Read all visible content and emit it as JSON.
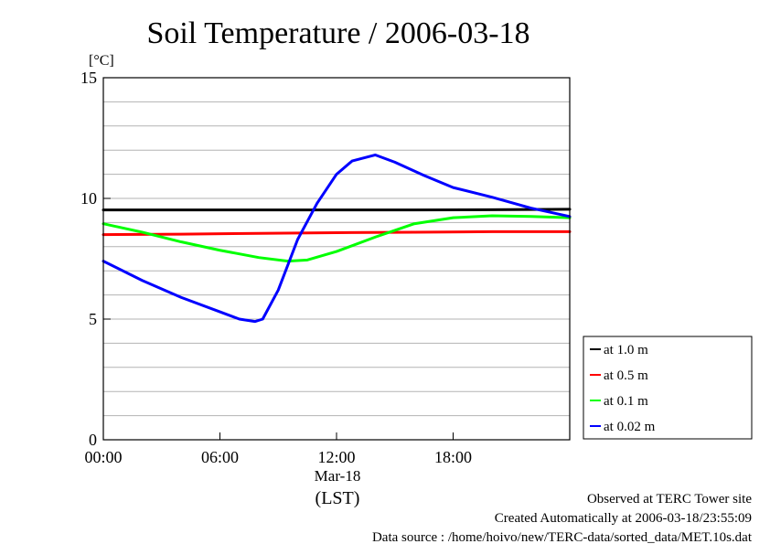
{
  "chart_data": {
    "type": "line",
    "title": "Soil Temperature / 2006-03-18",
    "yunit": "[°C]",
    "xdate_label": "Mar-18",
    "xlabel": "(LST)",
    "xlim_hours": [
      0,
      24
    ],
    "ylim": [
      0,
      15
    ],
    "x_ticks": [
      {
        "hour": 0,
        "label": "00:00"
      },
      {
        "hour": 6,
        "label": "06:00"
      },
      {
        "hour": 12,
        "label": "12:00"
      },
      {
        "hour": 18,
        "label": "18:00"
      }
    ],
    "y_ticks": [
      {
        "value": 0,
        "label": "0"
      },
      {
        "value": 5,
        "label": "5"
      },
      {
        "value": 10,
        "label": "10"
      },
      {
        "value": 15,
        "label": "15"
      }
    ],
    "grid_y_step": 1,
    "grid": true,
    "legend_position": "right",
    "series": [
      {
        "name": "at 1.0 m",
        "color": "#000000",
        "points": [
          [
            0,
            9.52
          ],
          [
            4,
            9.52
          ],
          [
            8,
            9.52
          ],
          [
            12,
            9.52
          ],
          [
            16,
            9.52
          ],
          [
            20,
            9.53
          ],
          [
            24,
            9.55
          ]
        ]
      },
      {
        "name": "at 0.5 m",
        "color": "#ff0000",
        "points": [
          [
            0,
            8.5
          ],
          [
            4,
            8.52
          ],
          [
            8,
            8.55
          ],
          [
            12,
            8.58
          ],
          [
            16,
            8.6
          ],
          [
            20,
            8.62
          ],
          [
            24,
            8.62
          ]
        ]
      },
      {
        "name": "at 0.1 m",
        "color": "#00ff00",
        "points": [
          [
            0,
            8.95
          ],
          [
            2,
            8.6
          ],
          [
            4,
            8.2
          ],
          [
            6,
            7.85
          ],
          [
            8,
            7.55
          ],
          [
            9.5,
            7.4
          ],
          [
            10.5,
            7.45
          ],
          [
            12,
            7.8
          ],
          [
            14,
            8.4
          ],
          [
            16,
            8.95
          ],
          [
            18,
            9.2
          ],
          [
            20,
            9.28
          ],
          [
            22,
            9.25
          ],
          [
            24,
            9.2
          ]
        ]
      },
      {
        "name": "at 0.02 m",
        "color": "#0000ff",
        "points": [
          [
            0,
            7.4
          ],
          [
            2,
            6.6
          ],
          [
            4,
            5.9
          ],
          [
            6,
            5.3
          ],
          [
            7,
            5.0
          ],
          [
            7.8,
            4.9
          ],
          [
            8.2,
            5.0
          ],
          [
            9,
            6.2
          ],
          [
            10,
            8.3
          ],
          [
            11,
            9.8
          ],
          [
            12,
            11.0
          ],
          [
            12.8,
            11.55
          ],
          [
            14,
            11.8
          ],
          [
            15,
            11.5
          ],
          [
            16.5,
            10.95
          ],
          [
            18,
            10.45
          ],
          [
            20,
            10.05
          ],
          [
            22,
            9.6
          ],
          [
            24,
            9.25
          ]
        ]
      }
    ]
  },
  "footer": {
    "line1": "Observed at TERC Tower site",
    "line2": "Created Automatically at 2006-03-18/23:55:09",
    "line3": "Data source : /home/hoivo/new/TERC-data/sorted_data/MET.10s.dat"
  }
}
